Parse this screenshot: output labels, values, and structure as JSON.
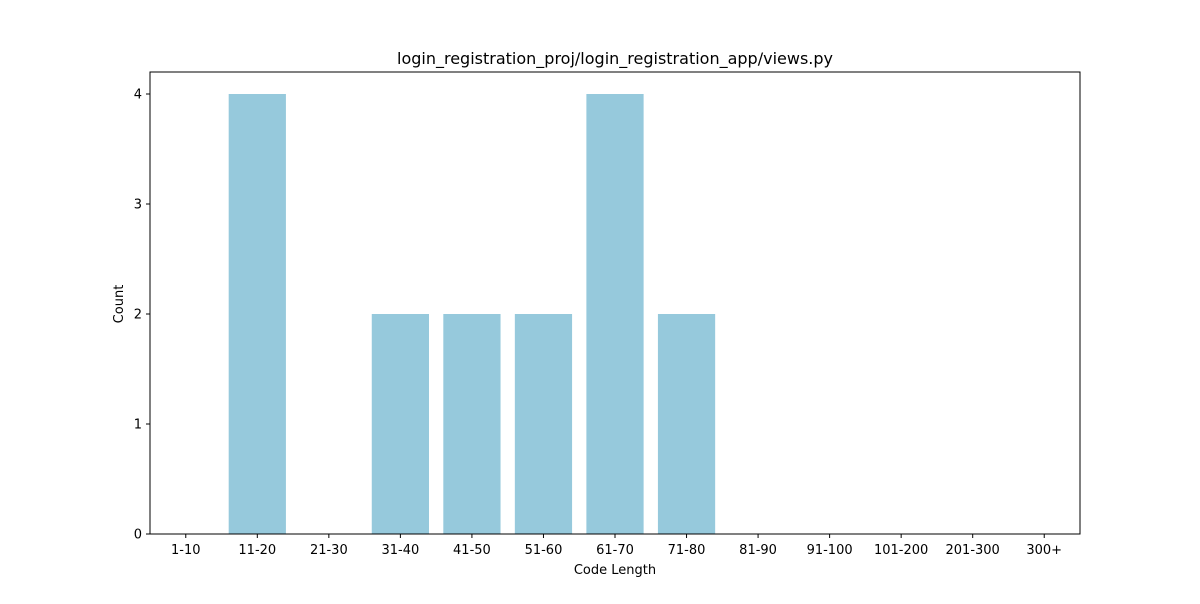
{
  "chart_data": {
    "type": "bar",
    "title": "login_registration_proj/login_registration_app/views.py",
    "xlabel": "Code Length",
    "ylabel": "Count",
    "categories": [
      "1-10",
      "11-20",
      "21-30",
      "31-40",
      "41-50",
      "51-60",
      "61-70",
      "71-80",
      "81-90",
      "91-100",
      "101-200",
      "201-300",
      "300+"
    ],
    "values": [
      0,
      4,
      0,
      2,
      2,
      2,
      4,
      2,
      0,
      0,
      0,
      0,
      0
    ],
    "yticks": [
      0,
      1,
      2,
      3,
      4
    ],
    "ylim": [
      0,
      4.2
    ],
    "bar_color": "#96c9dc",
    "grid": false,
    "legend": "none"
  }
}
